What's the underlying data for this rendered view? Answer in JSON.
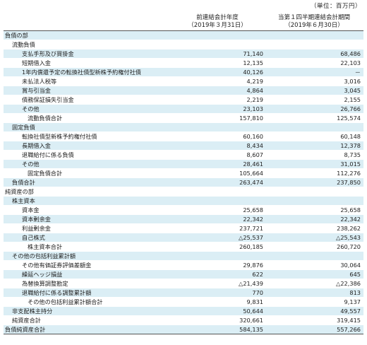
{
  "unit": "（単位：百万円）",
  "columns": {
    "prev_line1": "前連結会計年度",
    "prev_line2": "（2019年３月31日）",
    "curr_line1": "当第１四半期連結会計期間",
    "curr_line2": "（2019年６月30日）"
  },
  "rows": [
    {
      "label": "負債の部",
      "v1": "",
      "v2": "",
      "ind": 0,
      "shade": true
    },
    {
      "label": "流動負債",
      "v1": "",
      "v2": "",
      "ind": 1,
      "shade": false
    },
    {
      "label": "支払手形及び買掛金",
      "v1": "71,140",
      "v2": "68,486",
      "ind": 2,
      "shade": true
    },
    {
      "label": "短期借入金",
      "v1": "12,135",
      "v2": "22,103",
      "ind": 2,
      "shade": false
    },
    {
      "label": "1年内償還予定の転換社債型新株予約権付社債",
      "v1": "40,126",
      "v2": "－",
      "ind": 2,
      "shade": true
    },
    {
      "label": "未払法人税等",
      "v1": "4,219",
      "v2": "3,016",
      "ind": 2,
      "shade": false
    },
    {
      "label": "賞与引当金",
      "v1": "4,864",
      "v2": "3,045",
      "ind": 2,
      "shade": true
    },
    {
      "label": "債務保証損失引当金",
      "v1": "2,219",
      "v2": "2,155",
      "ind": 2,
      "shade": false
    },
    {
      "label": "その他",
      "v1": "23,103",
      "v2": "26,766",
      "ind": 2,
      "shade": true
    },
    {
      "label": "流動負債合計",
      "v1": "157,810",
      "v2": "125,574",
      "ind": 3,
      "shade": false
    },
    {
      "label": "固定負債",
      "v1": "",
      "v2": "",
      "ind": 1,
      "shade": true
    },
    {
      "label": "転換社債型新株予約権付社債",
      "v1": "60,160",
      "v2": "60,148",
      "ind": 2,
      "shade": false
    },
    {
      "label": "長期借入金",
      "v1": "8,434",
      "v2": "12,378",
      "ind": 2,
      "shade": true
    },
    {
      "label": "退職給付に係る負債",
      "v1": "8,607",
      "v2": "8,735",
      "ind": 2,
      "shade": false
    },
    {
      "label": "その他",
      "v1": "28,461",
      "v2": "31,015",
      "ind": 2,
      "shade": true
    },
    {
      "label": "固定負債合計",
      "v1": "105,664",
      "v2": "112,276",
      "ind": 3,
      "shade": false
    },
    {
      "label": "負債合計",
      "v1": "263,474",
      "v2": "237,850",
      "ind": 1,
      "shade": true
    },
    {
      "label": "純資産の部",
      "v1": "",
      "v2": "",
      "ind": 0,
      "shade": false
    },
    {
      "label": "株主資本",
      "v1": "",
      "v2": "",
      "ind": 1,
      "shade": true
    },
    {
      "label": "資本金",
      "v1": "25,658",
      "v2": "25,658",
      "ind": 2,
      "shade": false
    },
    {
      "label": "資本剰余金",
      "v1": "22,342",
      "v2": "22,342",
      "ind": 2,
      "shade": true
    },
    {
      "label": "利益剰余金",
      "v1": "237,721",
      "v2": "238,262",
      "ind": 2,
      "shade": false
    },
    {
      "label": "自己株式",
      "v1": "△25,537",
      "v2": "△25,543",
      "ind": 2,
      "shade": true
    },
    {
      "label": "株主資本合計",
      "v1": "260,185",
      "v2": "260,720",
      "ind": 3,
      "shade": false
    },
    {
      "label": "その他の包括利益累計額",
      "v1": "",
      "v2": "",
      "ind": 1,
      "shade": true
    },
    {
      "label": "その他有価証券評価差額金",
      "v1": "29,876",
      "v2": "30,064",
      "ind": 2,
      "shade": false
    },
    {
      "label": "繰延ヘッジ損益",
      "v1": "622",
      "v2": "645",
      "ind": 2,
      "shade": true
    },
    {
      "label": "為替換算調整勘定",
      "v1": "△21,439",
      "v2": "△22,386",
      "ind": 2,
      "shade": false
    },
    {
      "label": "退職給付に係る調整累計額",
      "v1": "770",
      "v2": "813",
      "ind": 2,
      "shade": true
    },
    {
      "label": "その他の包括利益累計額合計",
      "v1": "9,831",
      "v2": "9,137",
      "ind": 3,
      "shade": false
    },
    {
      "label": "非支配株主持分",
      "v1": "50,644",
      "v2": "49,557",
      "ind": 1,
      "shade": true
    },
    {
      "label": "純資産合計",
      "v1": "320,661",
      "v2": "319,415",
      "ind": 1,
      "shade": false
    },
    {
      "label": "負債純資産合計",
      "v1": "584,135",
      "v2": "557,266",
      "ind": 0,
      "shade": true
    }
  ]
}
